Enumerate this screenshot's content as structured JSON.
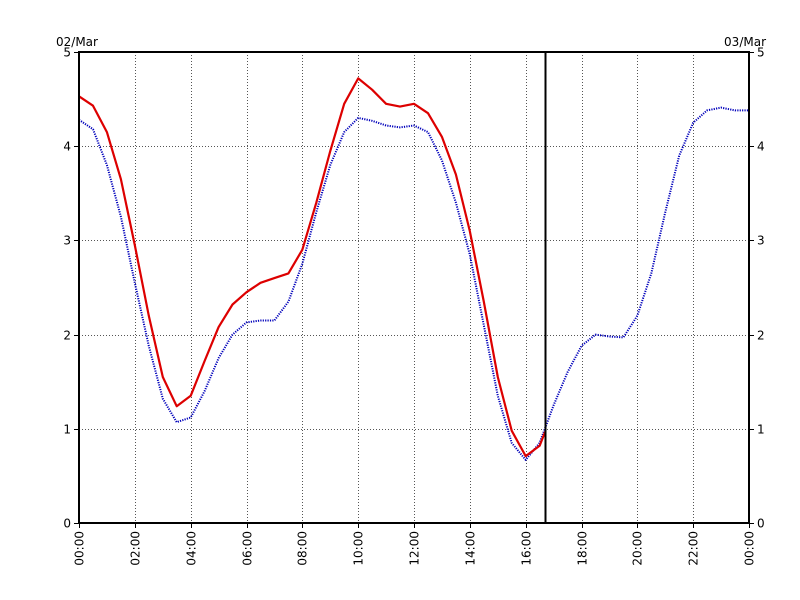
{
  "chart_data": {
    "type": "line",
    "start_label": "02/Mar",
    "end_label": "03/Mar",
    "xlim": [
      0,
      24
    ],
    "ylim": [
      0,
      5
    ],
    "grid": true,
    "x_tick_labels": [
      "00:00",
      "02:00",
      "04:00",
      "06:00",
      "08:00",
      "10:00",
      "12:00",
      "14:00",
      "16:00",
      "18:00",
      "20:00",
      "22:00",
      "00:00"
    ],
    "y_tick_labels": [
      "0",
      "1",
      "2",
      "3",
      "4",
      "5"
    ],
    "marker_x": 16.7,
    "series": [
      {
        "color": "#dd0000",
        "points": [
          [
            0,
            4.53
          ],
          [
            0.5,
            4.43
          ],
          [
            1.0,
            4.15
          ],
          [
            1.5,
            3.65
          ],
          [
            2.0,
            2.95
          ],
          [
            2.5,
            2.2
          ],
          [
            3.0,
            1.55
          ],
          [
            3.5,
            1.24
          ],
          [
            4.0,
            1.35
          ],
          [
            4.5,
            1.72
          ],
          [
            5.0,
            2.08
          ],
          [
            5.5,
            2.32
          ],
          [
            6.0,
            2.45
          ],
          [
            6.5,
            2.55
          ],
          [
            7.0,
            2.6
          ],
          [
            7.5,
            2.65
          ],
          [
            8.0,
            2.9
          ],
          [
            8.5,
            3.4
          ],
          [
            9.0,
            3.95
          ],
          [
            9.5,
            4.45
          ],
          [
            10.0,
            4.72
          ],
          [
            10.5,
            4.6
          ],
          [
            11.0,
            4.45
          ],
          [
            11.5,
            4.42
          ],
          [
            12.0,
            4.45
          ],
          [
            12.5,
            4.35
          ],
          [
            13.0,
            4.1
          ],
          [
            13.5,
            3.7
          ],
          [
            14.0,
            3.1
          ],
          [
            14.5,
            2.35
          ],
          [
            15.0,
            1.55
          ],
          [
            15.5,
            0.98
          ],
          [
            16.0,
            0.71
          ],
          [
            16.5,
            0.82
          ],
          [
            16.7,
            0.97
          ]
        ]
      },
      {
        "color": "#0000bb",
        "points": [
          [
            0,
            4.28
          ],
          [
            0.5,
            4.18
          ],
          [
            1.0,
            3.8
          ],
          [
            1.5,
            3.25
          ],
          [
            2.0,
            2.55
          ],
          [
            2.5,
            1.88
          ],
          [
            3.0,
            1.32
          ],
          [
            3.5,
            1.07
          ],
          [
            4.0,
            1.12
          ],
          [
            4.5,
            1.4
          ],
          [
            5.0,
            1.75
          ],
          [
            5.5,
            2.0
          ],
          [
            6.0,
            2.13
          ],
          [
            6.5,
            2.15
          ],
          [
            7.0,
            2.15
          ],
          [
            7.5,
            2.35
          ],
          [
            8.0,
            2.75
          ],
          [
            8.5,
            3.3
          ],
          [
            9.0,
            3.8
          ],
          [
            9.5,
            4.15
          ],
          [
            10.0,
            4.3
          ],
          [
            10.5,
            4.27
          ],
          [
            11.0,
            4.22
          ],
          [
            11.5,
            4.2
          ],
          [
            12.0,
            4.22
          ],
          [
            12.5,
            4.15
          ],
          [
            13.0,
            3.85
          ],
          [
            13.5,
            3.4
          ],
          [
            14.0,
            2.85
          ],
          [
            14.5,
            2.1
          ],
          [
            15.0,
            1.35
          ],
          [
            15.5,
            0.85
          ],
          [
            16.0,
            0.67
          ],
          [
            16.5,
            0.85
          ],
          [
            17.0,
            1.25
          ],
          [
            17.5,
            1.6
          ],
          [
            18.0,
            1.88
          ],
          [
            18.5,
            2.0
          ],
          [
            19.0,
            1.98
          ],
          [
            19.5,
            1.97
          ],
          [
            20.0,
            2.2
          ],
          [
            20.5,
            2.65
          ],
          [
            21.0,
            3.3
          ],
          [
            21.5,
            3.9
          ],
          [
            22.0,
            4.25
          ],
          [
            22.5,
            4.38
          ],
          [
            23.0,
            4.41
          ],
          [
            23.5,
            4.38
          ],
          [
            24.0,
            4.38
          ]
        ]
      }
    ]
  }
}
